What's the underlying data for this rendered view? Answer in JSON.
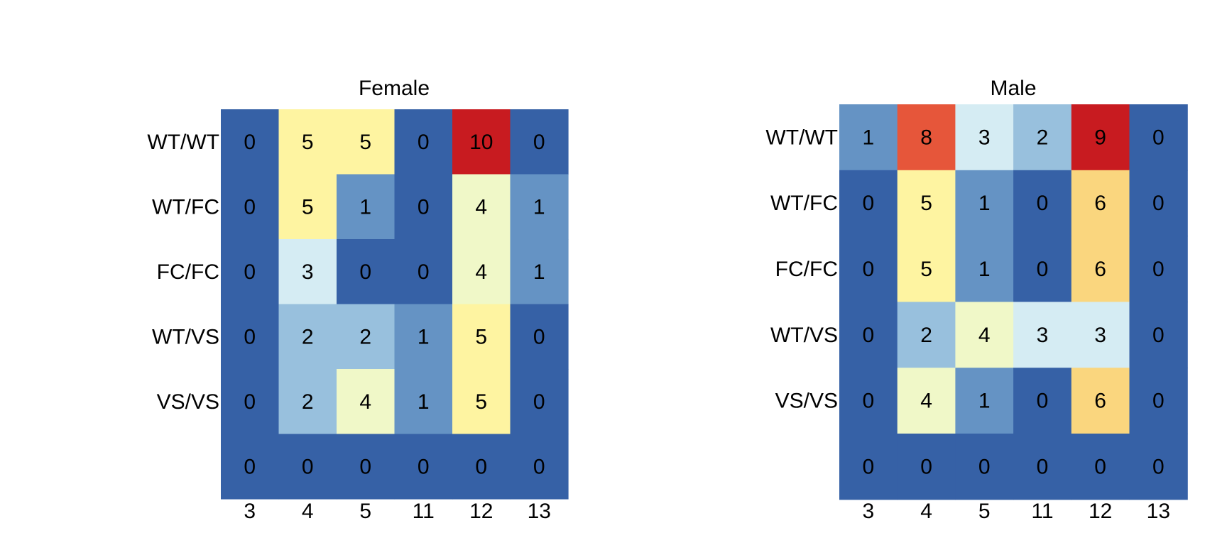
{
  "chart_data": [
    {
      "type": "heatmap",
      "title": "Female",
      "rows": [
        "WT/WT",
        "WT/FC",
        "FC/FC",
        "WT/VS",
        "VS/VS",
        ""
      ],
      "columns": [
        "3",
        "4",
        "5",
        "11",
        "12",
        "13"
      ],
      "values": [
        [
          0,
          5,
          5,
          0,
          10,
          0
        ],
        [
          0,
          5,
          1,
          0,
          4,
          1
        ],
        [
          0,
          3,
          0,
          0,
          4,
          1
        ],
        [
          0,
          2,
          2,
          1,
          5,
          0
        ],
        [
          0,
          2,
          4,
          1,
          5,
          0
        ],
        [
          0,
          0,
          0,
          0,
          0,
          0
        ]
      ],
      "value_range": [
        0,
        10
      ]
    },
    {
      "type": "heatmap",
      "title": "Male",
      "rows": [
        "WT/WT",
        "WT/FC",
        "FC/FC",
        "WT/VS",
        "VS/VS",
        ""
      ],
      "columns": [
        "3",
        "4",
        "5",
        "11",
        "12",
        "13"
      ],
      "values": [
        [
          1,
          8,
          3,
          2,
          9,
          0
        ],
        [
          0,
          5,
          1,
          0,
          6,
          0
        ],
        [
          0,
          5,
          1,
          0,
          6,
          0
        ],
        [
          0,
          2,
          4,
          3,
          3,
          0
        ],
        [
          0,
          4,
          1,
          0,
          6,
          0
        ],
        [
          0,
          0,
          0,
          0,
          0,
          0
        ]
      ],
      "value_range": [
        0,
        9
      ]
    }
  ],
  "colors": {
    "palette": [
      "#3661a6",
      "#6593c4",
      "#98c0dd",
      "#d5ecf3",
      "#f0f8c8",
      "#fef4a1",
      "#fad67e",
      "#f6a15e",
      "#e6563a",
      "#c81b20"
    ]
  }
}
